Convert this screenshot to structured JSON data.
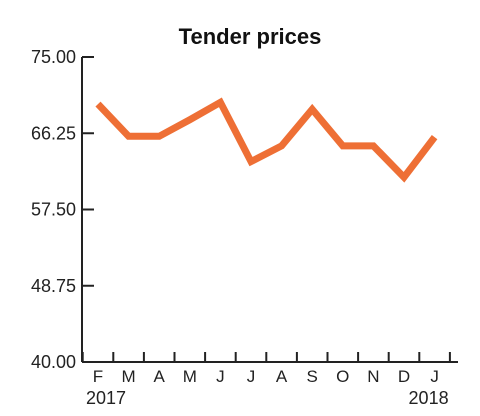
{
  "chart_data": {
    "type": "line",
    "title": "Tender prices",
    "xlabel": "",
    "ylabel": "",
    "ylim": [
      40.0,
      75.0
    ],
    "y_ticks": [
      "75.00",
      "66.25",
      "57.50",
      "48.75",
      "40.00"
    ],
    "y_tick_values": [
      75.0,
      66.25,
      57.5,
      48.75,
      40.0
    ],
    "categories": [
      "F",
      "M",
      "A",
      "M",
      "J",
      "J",
      "A",
      "S",
      "O",
      "N",
      "D",
      "J"
    ],
    "year_labels": [
      {
        "category_index": 0,
        "text": "2017"
      },
      {
        "category_index": 11,
        "text": "2018"
      }
    ],
    "series": [
      {
        "values": [
          69.6,
          65.9,
          65.9,
          67.8,
          69.8,
          63.0,
          64.8,
          69.0,
          64.8,
          64.8,
          61.2,
          65.8
        ]
      }
    ],
    "grid": false,
    "legend": "none",
    "line_color": "#ee6f35",
    "axis_color": "#222222"
  }
}
